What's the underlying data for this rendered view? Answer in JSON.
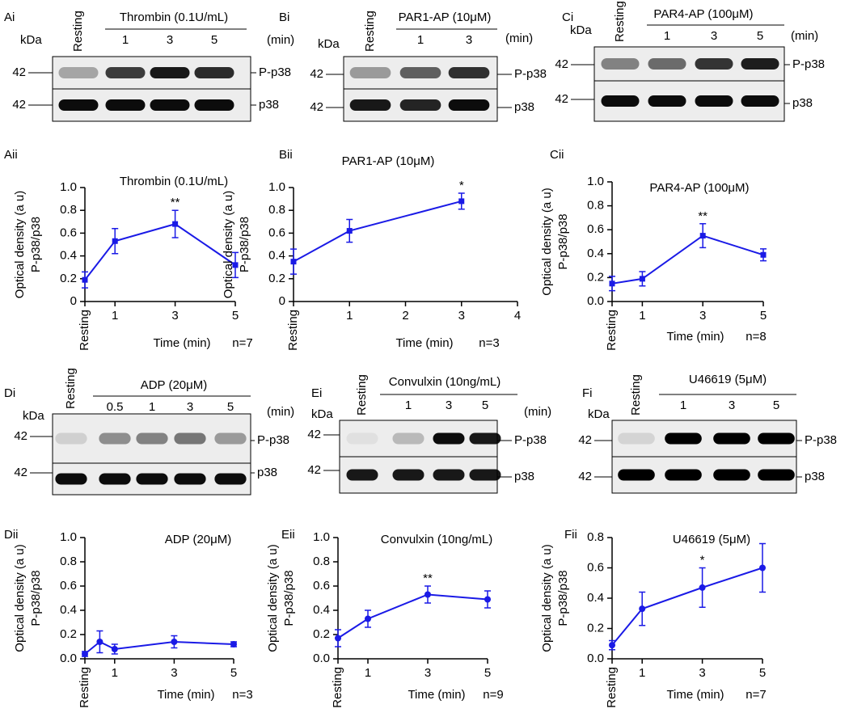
{
  "blots": [
    {
      "panel": "Ai",
      "treatment": "Thrombin (0.1U/mL)",
      "lanes": [
        "Resting",
        "1",
        "3",
        "5"
      ],
      "unit": "(min)",
      "kda": "kDa",
      "rows": [
        {
          "marker": "42",
          "label": "P-p38"
        },
        {
          "marker": "42",
          "label": "p38"
        }
      ]
    },
    {
      "panel": "Bi",
      "treatment": "PAR1-AP (10μM)",
      "lanes": [
        "Resting",
        "1",
        "3"
      ],
      "unit": "(min)",
      "kda": "kDa",
      "rows": [
        {
          "marker": "42",
          "label": "P-p38"
        },
        {
          "marker": "42",
          "label": "p38"
        }
      ]
    },
    {
      "panel": "Ci",
      "treatment": "PAR4-AP (100μM)",
      "lanes": [
        "Resting",
        "1",
        "3",
        "5"
      ],
      "unit": "(min)",
      "kda": "kDa",
      "rows": [
        {
          "marker": "42",
          "label": "P-p38"
        },
        {
          "marker": "42",
          "label": "p38"
        }
      ]
    },
    {
      "panel": "Di",
      "treatment": "ADP (20μM)",
      "lanes": [
        "Resting",
        "0.5",
        "1",
        "3",
        "5"
      ],
      "unit": "(min)",
      "kda": "kDa",
      "rows": [
        {
          "marker": "42",
          "label": "P-p38"
        },
        {
          "marker": "42",
          "label": "p38"
        }
      ]
    },
    {
      "panel": "Ei",
      "treatment": "Convulxin (10ng/mL)",
      "lanes": [
        "Resting",
        "1",
        "3",
        "5"
      ],
      "unit": "(min)",
      "kda": "kDa",
      "rows": [
        {
          "marker": "42",
          "label": "P-p38"
        },
        {
          "marker": "42",
          "label": "p38"
        }
      ]
    },
    {
      "panel": "Fi",
      "treatment": "U46619 (5μM)",
      "lanes": [
        "Resting",
        "1",
        "3",
        "5"
      ],
      "kda": "kDa",
      "rows": [
        {
          "marker": "42",
          "label": "P-p38"
        },
        {
          "marker": "42",
          "label": "p38"
        }
      ]
    }
  ],
  "chart_data": [
    {
      "type": "line",
      "panel": "Aii",
      "title": "Thrombin (0.1U/mL)",
      "ylabel": [
        "Optical density (a u)",
        "P-p38/p38"
      ],
      "xlabel": "Time (min)",
      "note": "n=7",
      "marker": "square",
      "x": [
        0,
        1,
        3,
        5
      ],
      "series": [
        {
          "color": "#1a1ae6",
          "values": [
            0.19,
            0.53,
            0.68,
            0.32
          ],
          "errors": [
            0.07,
            0.11,
            0.12,
            0.11
          ]
        }
      ],
      "xlim": [
        0,
        5
      ],
      "xticks": [
        {
          "value": 0,
          "label": "Resting"
        },
        1,
        3,
        5
      ],
      "ylim": [
        0,
        1
      ],
      "yticks": [
        0,
        0.2,
        0.4,
        0.6,
        0.8,
        {
          "value": 1,
          "label": "1.0"
        }
      ],
      "annotations": [
        {
          "x": 3,
          "text": "**"
        }
      ]
    },
    {
      "type": "line",
      "panel": "Bii",
      "title": "PAR1-AP (10μM)",
      "ylabel": [
        "Optical density (a u)",
        "P-p38/p38"
      ],
      "xlabel": "Time (min)",
      "note": "n=3",
      "marker": "square",
      "x": [
        0,
        1,
        3
      ],
      "series": [
        {
          "color": "#1a1ae6",
          "values": [
            0.35,
            0.62,
            0.88
          ],
          "errors": [
            0.11,
            0.1,
            0.07
          ]
        }
      ],
      "xlim": [
        0,
        4
      ],
      "xticks": [
        {
          "value": 0,
          "label": "Resting"
        },
        1,
        2,
        3,
        4
      ],
      "ylim": [
        0,
        1
      ],
      "yticks": [
        0,
        0.2,
        0.4,
        0.6,
        0.8,
        {
          "value": 1,
          "label": "1.0"
        }
      ],
      "annotations": [
        {
          "x": 3,
          "text": "*"
        }
      ]
    },
    {
      "type": "line",
      "panel": "Cii",
      "title": "PAR4-AP (100μM)",
      "ylabel": [
        "Optical density (a u)",
        "P-p38/p38"
      ],
      "xlabel": "Time (min)",
      "note": "n=8",
      "marker": "square",
      "x": [
        0,
        1,
        3,
        5
      ],
      "series": [
        {
          "color": "#1a1ae6",
          "values": [
            0.15,
            0.19,
            0.55,
            0.39
          ],
          "errors": [
            0.06,
            0.06,
            0.1,
            0.05
          ]
        }
      ],
      "xlim": [
        0,
        5
      ],
      "xticks": [
        {
          "value": 0,
          "label": "Resting"
        },
        1,
        3,
        5
      ],
      "ylim": [
        0,
        1
      ],
      "yticks": [
        {
          "value": 0,
          "label": "0.0"
        },
        0.2,
        0.4,
        0.6,
        0.8,
        {
          "value": 1,
          "label": "1.0"
        }
      ],
      "annotations": [
        {
          "x": 3,
          "text": "**"
        }
      ]
    },
    {
      "type": "line",
      "panel": "Dii",
      "title": "ADP (20μM)",
      "ylabel": [
        "Optical density (a u)",
        "P-p38/p38"
      ],
      "xlabel": "Time (min)",
      "note": "n=3",
      "marker": "circle",
      "x": [
        0,
        0.5,
        1,
        3,
        5
      ],
      "series": [
        {
          "color": "#1a1ae6",
          "values": [
            0.04,
            0.14,
            0.08,
            0.14,
            0.12
          ],
          "errors": [
            0.02,
            0.09,
            0.04,
            0.05,
            0.02
          ]
        }
      ],
      "xlim": [
        0,
        5
      ],
      "xticks": [
        {
          "value": 0,
          "label": "Resting"
        },
        1,
        3,
        5
      ],
      "ylim": [
        0,
        1
      ],
      "yticks": [
        {
          "value": 0,
          "label": "0.0"
        },
        0.2,
        0.4,
        0.6,
        0.8,
        {
          "value": 1,
          "label": "1.0"
        }
      ],
      "annotations": []
    },
    {
      "type": "line",
      "panel": "Eii",
      "title": "Convulxin (10ng/mL)",
      "ylabel": [
        "Optical density (a u)",
        "P-p38/p38"
      ],
      "xlabel": "Time (min)",
      "note": "n=9",
      "marker": "circle",
      "x": [
        0,
        1,
        3,
        5
      ],
      "series": [
        {
          "color": "#1a1ae6",
          "values": [
            0.17,
            0.33,
            0.53,
            0.49
          ],
          "errors": [
            0.07,
            0.07,
            0.07,
            0.07
          ]
        }
      ],
      "xlim": [
        0,
        5
      ],
      "xticks": [
        {
          "value": 0,
          "label": "Resting"
        },
        1,
        3,
        5
      ],
      "ylim": [
        0,
        1
      ],
      "yticks": [
        {
          "value": 0,
          "label": "0.0"
        },
        0.2,
        0.4,
        0.6,
        0.8,
        {
          "value": 1,
          "label": "1.0"
        }
      ],
      "annotations": [
        {
          "x": 3,
          "text": "**"
        }
      ]
    },
    {
      "type": "line",
      "panel": "Fii",
      "title": "U46619 (5μM)",
      "ylabel": [
        "Optical density (a u)",
        "P-p38/p38"
      ],
      "xlabel": "Time (min)",
      "note": "n=7",
      "marker": "circle",
      "x": [
        0,
        1,
        3,
        5
      ],
      "series": [
        {
          "color": "#1a1ae6",
          "values": [
            0.09,
            0.33,
            0.47,
            0.6
          ],
          "errors": [
            0.03,
            0.11,
            0.13,
            0.16
          ]
        }
      ],
      "xlim": [
        0,
        5
      ],
      "xticks": [
        {
          "value": 0,
          "label": "Resting"
        },
        1,
        3,
        5
      ],
      "ylim": [
        0,
        0.8
      ],
      "yticks": [
        {
          "value": 0,
          "label": "0.0"
        },
        0.2,
        0.4,
        0.6,
        0.8
      ],
      "annotations": [
        {
          "x": 3,
          "text": "*"
        }
      ]
    }
  ]
}
